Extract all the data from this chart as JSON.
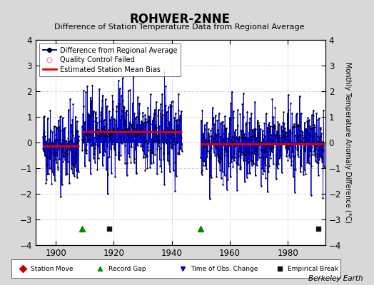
{
  "title": "ROHWER-2NNE",
  "subtitle": "Difference of Station Temperature Data from Regional Average",
  "ylabel_right": "Monthly Temperature Anomaly Difference (°C)",
  "credit": "Berkeley Earth",
  "xlim": [
    1893,
    1993
  ],
  "ylim": [
    -4,
    4
  ],
  "yticks": [
    -4,
    -3,
    -2,
    -1,
    0,
    1,
    2,
    3,
    4
  ],
  "xticks": [
    1900,
    1920,
    1940,
    1960,
    1980
  ],
  "bg_color": "#d8d8d8",
  "plot_bg_color": "#ffffff",
  "line_color": "#0000cc",
  "dot_color": "#000000",
  "bias_color": "#dd0000",
  "segments": [
    {
      "x_start": 1895.5,
      "x_end": 1908.0,
      "bias": -0.15
    },
    {
      "x_start": 1909.0,
      "x_end": 1943.5,
      "bias": 0.42
    },
    {
      "x_start": 1950.0,
      "x_end": 1992.5,
      "bias": -0.05
    }
  ],
  "record_gaps": [
    1909.0,
    1950.0
  ],
  "empirical_breaks": [
    1918.5,
    1990.5
  ],
  "seed": 42,
  "period1_start": 1895.5,
  "period1_end": 1908.0,
  "period1_bias": -0.15,
  "period1_amplitude": 0.75,
  "period2_start": 1909.0,
  "period2_end": 1943.5,
  "period2_bias": 0.42,
  "period2_amplitude": 0.8,
  "period3_start": 1950.0,
  "period3_end": 1992.5,
  "period3_bias": -0.05,
  "period3_amplitude": 0.7
}
